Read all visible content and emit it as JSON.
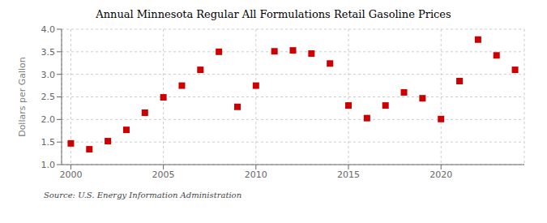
{
  "chart_data": {
    "type": "scatter",
    "title": "Annual Minnesota Regular All Formulations Retail Gasoline Prices",
    "y_label": "Dollars per Gallon",
    "annotations": [
      "Source: U.S. Energy Information Administration"
    ],
    "x": [
      2000,
      2001,
      2002,
      2003,
      2004,
      2005,
      2006,
      2007,
      2008,
      2009,
      2010,
      2011,
      2012,
      2013,
      2014,
      2015,
      2016,
      2017,
      2018,
      2019,
      2020,
      2021,
      2022,
      2023,
      2024
    ],
    "values": [
      1.47,
      1.34,
      1.52,
      1.77,
      2.15,
      2.49,
      2.75,
      3.1,
      3.5,
      2.28,
      2.75,
      3.51,
      3.53,
      3.46,
      3.24,
      2.31,
      2.03,
      2.31,
      2.6,
      2.47,
      2.01,
      2.85,
      3.77,
      3.42,
      3.1
    ],
    "color": "#cc0000",
    "marker": "square",
    "xlim": [
      1999.5,
      2024.5
    ],
    "xticks": [
      2000,
      2005,
      2010,
      2015,
      2020
    ],
    "ylim": [
      1.0,
      4.0
    ],
    "yticks": [
      {
        "value": 1.0,
        "label": "1.0"
      },
      {
        "value": 1.5,
        "label": "1.5"
      },
      {
        "value": 2.0,
        "label": "2.0"
      },
      {
        "value": 2.5,
        "label": "2.5"
      },
      {
        "value": 3.0,
        "label": "3.0"
      },
      {
        "value": 3.5,
        "label": "3.5"
      },
      {
        "value": 4.0,
        "label": "4.0"
      }
    ],
    "grid": true
  }
}
